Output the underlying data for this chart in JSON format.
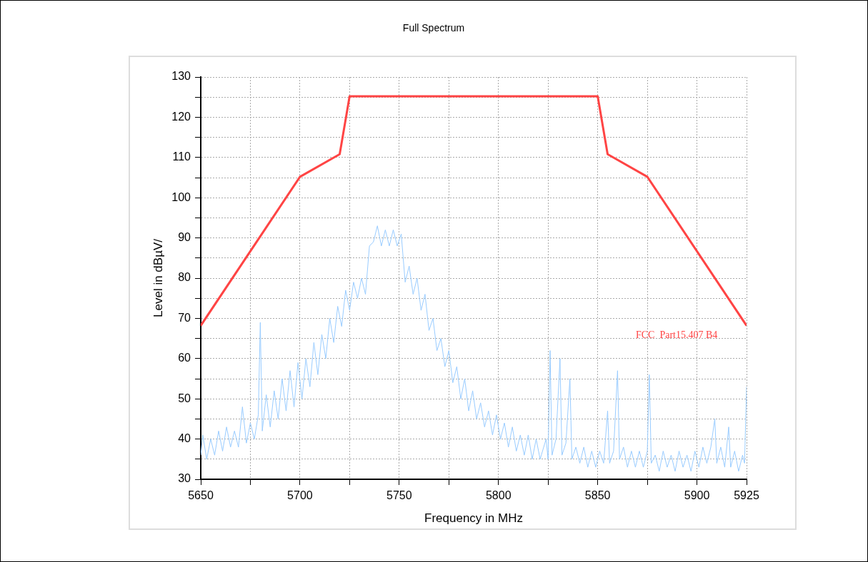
{
  "chart_data": {
    "type": "line",
    "title": "Full Spectrum",
    "xlabel": "Frequency in MHz",
    "ylabel": "Level in dBµV/",
    "xlim": [
      5650,
      5925
    ],
    "ylim": [
      30,
      130
    ],
    "xticks": [
      5650,
      {
        "value": 5675,
        "label": null
      },
      5700,
      {
        "value": 5725,
        "label": null
      },
      5750,
      {
        "value": 5775,
        "label": null
      },
      5800,
      {
        "value": 5825,
        "label": null
      },
      5850,
      {
        "value": 5875,
        "label": null
      },
      5900,
      5925
    ],
    "yticks": [
      30,
      {
        "value": 35,
        "label": null
      },
      40,
      {
        "value": 45,
        "label": null
      },
      50,
      {
        "value": 55,
        "label": null
      },
      60,
      {
        "value": 65,
        "label": null
      },
      70,
      {
        "value": 75,
        "label": null
      },
      80,
      {
        "value": 85,
        "label": null
      },
      90,
      {
        "value": 95,
        "label": null
      },
      100,
      {
        "value": 105,
        "label": null
      },
      110,
      {
        "value": 115,
        "label": null
      },
      120,
      {
        "value": 125,
        "label": null
      },
      130
    ],
    "grid": true,
    "legend": false,
    "marker": "none",
    "line_style": "solid",
    "series": [
      {
        "color": "#99ccff",
        "x": [
          5650,
          5651,
          5653,
          5655,
          5657,
          5659,
          5661,
          5663,
          5665,
          5667,
          5669,
          5671,
          5673,
          5675,
          5677,
          5679,
          5680,
          5681,
          5683,
          5685,
          5687,
          5689,
          5691,
          5693,
          5695,
          5697,
          5699,
          5701,
          5703,
          5705,
          5707,
          5709,
          5711,
          5713,
          5715,
          5717,
          5719,
          5721,
          5723,
          5725,
          5727,
          5729,
          5731,
          5733,
          5735,
          5737,
          5739,
          5741,
          5743,
          5745,
          5747,
          5749,
          5751,
          5753,
          5755,
          5757,
          5759,
          5761,
          5763,
          5765,
          5767,
          5769,
          5771,
          5773,
          5775,
          5777,
          5779,
          5781,
          5783,
          5785,
          5787,
          5789,
          5791,
          5793,
          5795,
          5797,
          5799,
          5801,
          5803,
          5805,
          5807,
          5809,
          5811,
          5813,
          5815,
          5817,
          5819,
          5821,
          5824,
          5825,
          5826,
          5827,
          5829,
          5831,
          5832,
          5834,
          5836,
          5837,
          5839,
          5841,
          5843,
          5845,
          5847,
          5849,
          5851,
          5853,
          5855,
          5856,
          5858,
          5860,
          5861,
          5863,
          5865,
          5867,
          5869,
          5871,
          5873,
          5875,
          5876,
          5877,
          5879,
          5881,
          5883,
          5885,
          5887,
          5889,
          5891,
          5893,
          5895,
          5897,
          5899,
          5901,
          5903,
          5905,
          5907,
          5909,
          5910,
          5912,
          5914,
          5916,
          5917,
          5919,
          5921,
          5923,
          5924,
          5925
        ],
        "values": [
          36,
          41,
          35,
          40,
          36,
          42,
          37,
          43,
          38,
          42,
          38,
          48,
          39,
          44,
          40,
          46,
          69,
          42,
          51,
          43,
          52,
          45,
          55,
          47,
          57,
          48,
          59,
          50,
          60,
          53,
          64,
          56,
          66,
          60,
          70,
          64,
          73,
          68,
          77,
          72,
          79,
          75,
          80,
          76,
          88,
          89,
          93,
          88,
          92,
          88,
          92,
          88,
          91,
          79,
          83,
          76,
          80,
          72,
          76,
          67,
          70,
          62,
          65,
          58,
          62,
          54,
          58,
          50,
          55,
          47,
          52,
          45,
          49,
          43,
          47,
          41,
          46,
          40,
          44,
          38,
          43,
          37,
          41,
          36,
          41,
          35,
          40,
          35,
          40,
          35,
          62,
          36,
          40,
          60,
          36,
          39,
          55,
          35,
          38,
          34,
          38,
          33,
          37,
          33,
          37,
          34,
          47,
          34,
          37,
          57,
          35,
          38,
          33,
          37,
          33,
          37,
          33,
          37,
          56,
          34,
          36,
          32,
          37,
          33,
          36,
          32,
          37,
          33,
          36,
          32,
          37,
          33,
          38,
          34,
          38,
          45,
          34,
          38,
          33,
          43,
          33,
          37,
          32,
          36,
          34,
          53
        ]
      },
      {
        "name": "FCC  Part15.407 B4",
        "color": "#ff4444",
        "x": [
          5650,
          5700,
          5720,
          5725,
          5850,
          5855,
          5875,
          5925
        ],
        "values": [
          68.2,
          105.2,
          110.8,
          125.2,
          125.2,
          110.8,
          105.2,
          68.2
        ]
      }
    ]
  }
}
